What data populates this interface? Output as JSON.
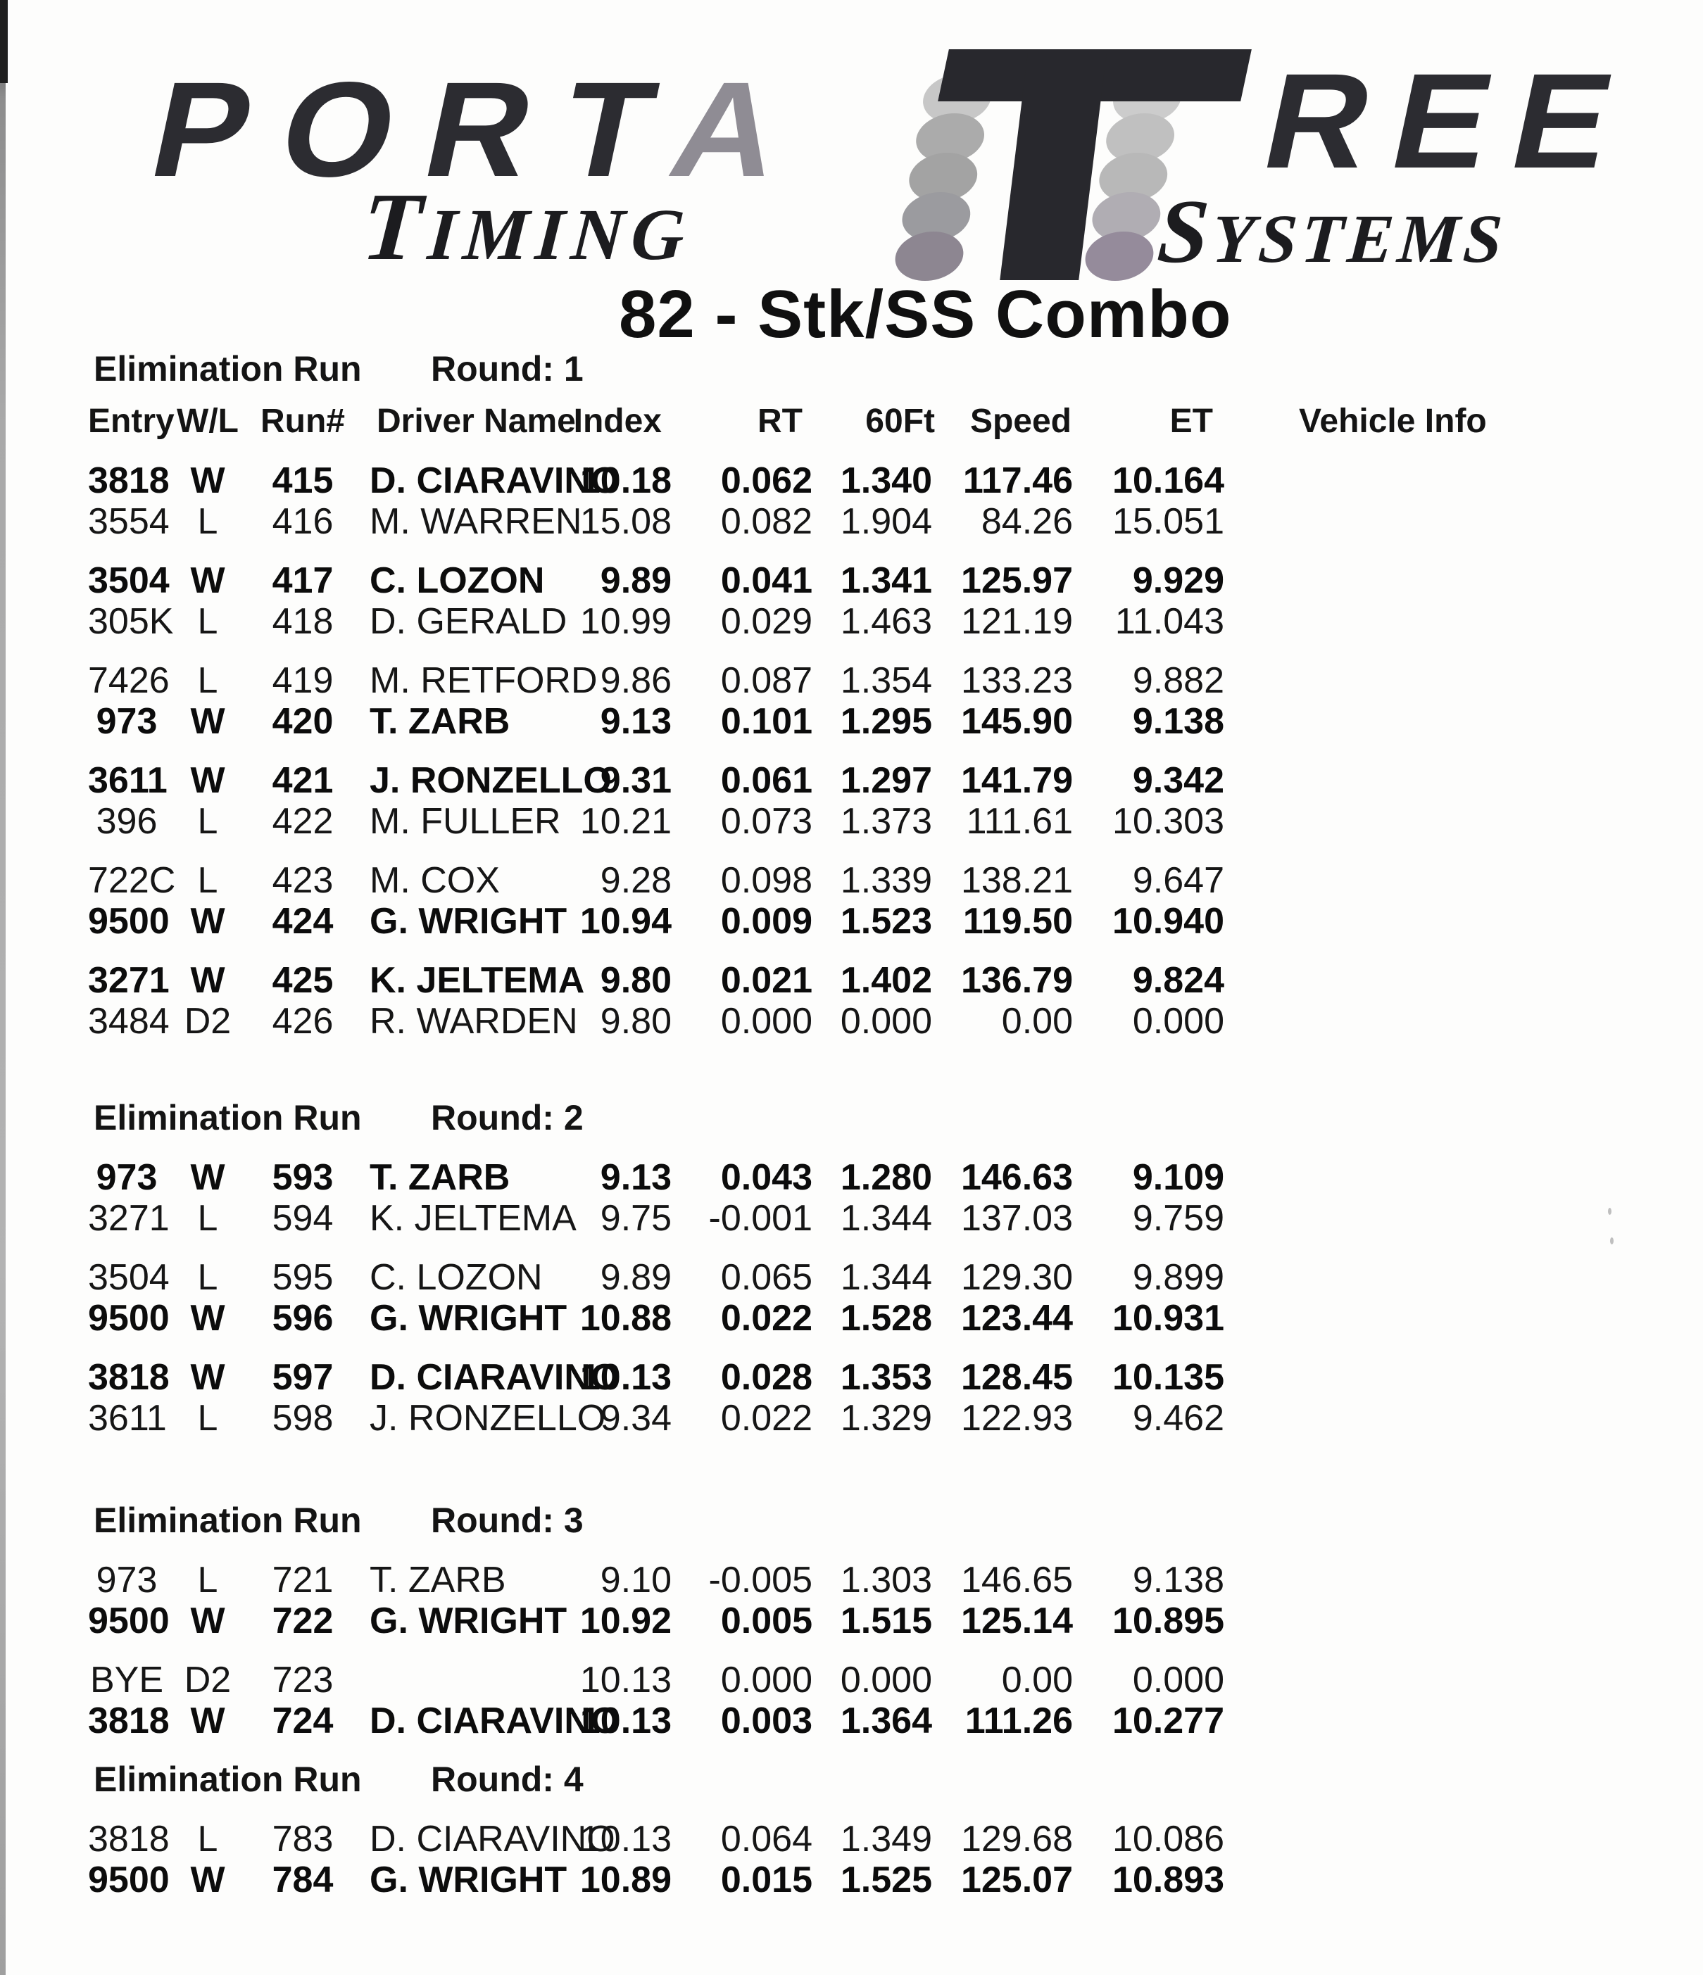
{
  "logo": {
    "brand_left_dark": "PORT",
    "brand_left_light": "A",
    "brand_right": "REE",
    "sub_left": "TIMING",
    "sub_right": "SYSTEMS",
    "ink_color": "#28282d",
    "light_colors_left": [
      "#c7c7c7",
      "#ababab",
      "#a3a3a3",
      "#9b9b9f",
      "#8d8691"
    ],
    "light_colors_right": [
      "#cccccc",
      "#c0c0c0",
      "#b8b8b8",
      "#b0adb3",
      "#958b9b"
    ]
  },
  "title": "82 - Stk/SS Combo",
  "table": {
    "section_label": "Elimination Run",
    "columns": [
      "Entry",
      "W/L",
      "Run#",
      "Driver Name",
      "Index",
      "RT",
      "60Ft",
      "Speed",
      "ET",
      "Vehicle Info"
    ],
    "rounds": [
      {
        "label": "Round: 1",
        "pairs": [
          [
            {
              "entry": "3818",
              "wl": "W",
              "run": "415",
              "driver": "D. CIARAVINO",
              "index": "10.18",
              "rt": "0.062",
              "ft60": "1.340",
              "speed": "117.46",
              "et": "10.164",
              "vehicle": "",
              "win": true
            },
            {
              "entry": "3554",
              "wl": "L",
              "run": "416",
              "driver": "M. WARREN",
              "index": "15.08",
              "rt": "0.082",
              "ft60": "1.904",
              "speed": "84.26",
              "et": "15.051",
              "vehicle": "",
              "win": false
            }
          ],
          [
            {
              "entry": "3504",
              "wl": "W",
              "run": "417",
              "driver": "C. LOZON",
              "index": "9.89",
              "rt": "0.041",
              "ft60": "1.341",
              "speed": "125.97",
              "et": "9.929",
              "vehicle": "",
              "win": true
            },
            {
              "entry": "305K",
              "wl": "L",
              "run": "418",
              "driver": "D. GERALD",
              "index": "10.99",
              "rt": "0.029",
              "ft60": "1.463",
              "speed": "121.19",
              "et": "11.043",
              "vehicle": "",
              "win": false
            }
          ],
          [
            {
              "entry": "7426",
              "wl": "L",
              "run": "419",
              "driver": "M. RETFORD",
              "index": "9.86",
              "rt": "0.087",
              "ft60": "1.354",
              "speed": "133.23",
              "et": "9.882",
              "vehicle": "",
              "win": false
            },
            {
              "entry": "973",
              "wl": "W",
              "run": "420",
              "driver": "T. ZARB",
              "index": "9.13",
              "rt": "0.101",
              "ft60": "1.295",
              "speed": "145.90",
              "et": "9.138",
              "vehicle": "",
              "win": true
            }
          ],
          [
            {
              "entry": "3611",
              "wl": "W",
              "run": "421",
              "driver": "J. RONZELLO",
              "index": "9.31",
              "rt": "0.061",
              "ft60": "1.297",
              "speed": "141.79",
              "et": "9.342",
              "vehicle": "",
              "win": true
            },
            {
              "entry": "396",
              "wl": "L",
              "run": "422",
              "driver": "M. FULLER",
              "index": "10.21",
              "rt": "0.073",
              "ft60": "1.373",
              "speed": "111.61",
              "et": "10.303",
              "vehicle": "",
              "win": false
            }
          ],
          [
            {
              "entry": "722C",
              "wl": "L",
              "run": "423",
              "driver": "M. COX",
              "index": "9.28",
              "rt": "0.098",
              "ft60": "1.339",
              "speed": "138.21",
              "et": "9.647",
              "vehicle": "",
              "win": false
            },
            {
              "entry": "9500",
              "wl": "W",
              "run": "424",
              "driver": "G. WRIGHT",
              "index": "10.94",
              "rt": "0.009",
              "ft60": "1.523",
              "speed": "119.50",
              "et": "10.940",
              "vehicle": "",
              "win": true
            }
          ],
          [
            {
              "entry": "3271",
              "wl": "W",
              "run": "425",
              "driver": "K. JELTEMA",
              "index": "9.80",
              "rt": "0.021",
              "ft60": "1.402",
              "speed": "136.79",
              "et": "9.824",
              "vehicle": "",
              "win": true
            },
            {
              "entry": "3484",
              "wl": "D2",
              "run": "426",
              "driver": "R. WARDEN",
              "index": "9.80",
              "rt": "0.000",
              "ft60": "0.000",
              "speed": "0.00",
              "et": "0.000",
              "vehicle": "",
              "win": false
            }
          ]
        ]
      },
      {
        "label": "Round: 2",
        "pairs": [
          [
            {
              "entry": "973",
              "wl": "W",
              "run": "593",
              "driver": "T. ZARB",
              "index": "9.13",
              "rt": "0.043",
              "ft60": "1.280",
              "speed": "146.63",
              "et": "9.109",
              "vehicle": "",
              "win": true
            },
            {
              "entry": "3271",
              "wl": "L",
              "run": "594",
              "driver": "K. JELTEMA",
              "index": "9.75",
              "rt": "-0.001",
              "ft60": "1.344",
              "speed": "137.03",
              "et": "9.759",
              "vehicle": "",
              "win": false
            }
          ],
          [
            {
              "entry": "3504",
              "wl": "L",
              "run": "595",
              "driver": "C. LOZON",
              "index": "9.89",
              "rt": "0.065",
              "ft60": "1.344",
              "speed": "129.30",
              "et": "9.899",
              "vehicle": "",
              "win": false
            },
            {
              "entry": "9500",
              "wl": "W",
              "run": "596",
              "driver": "G. WRIGHT",
              "index": "10.88",
              "rt": "0.022",
              "ft60": "1.528",
              "speed": "123.44",
              "et": "10.931",
              "vehicle": "",
              "win": true
            }
          ],
          [
            {
              "entry": "3818",
              "wl": "W",
              "run": "597",
              "driver": "D. CIARAVINO",
              "index": "10.13",
              "rt": "0.028",
              "ft60": "1.353",
              "speed": "128.45",
              "et": "10.135",
              "vehicle": "",
              "win": true
            },
            {
              "entry": "3611",
              "wl": "L",
              "run": "598",
              "driver": "J. RONZELLO",
              "index": "9.34",
              "rt": "0.022",
              "ft60": "1.329",
              "speed": "122.93",
              "et": "9.462",
              "vehicle": "",
              "win": false
            }
          ]
        ]
      },
      {
        "label": "Round: 3",
        "pairs": [
          [
            {
              "entry": "973",
              "wl": "L",
              "run": "721",
              "driver": "T. ZARB",
              "index": "9.10",
              "rt": "-0.005",
              "ft60": "1.303",
              "speed": "146.65",
              "et": "9.138",
              "vehicle": "",
              "win": false
            },
            {
              "entry": "9500",
              "wl": "W",
              "run": "722",
              "driver": "G. WRIGHT",
              "index": "10.92",
              "rt": "0.005",
              "ft60": "1.515",
              "speed": "125.14",
              "et": "10.895",
              "vehicle": "",
              "win": true
            }
          ],
          [
            {
              "entry": "BYE",
              "wl": "D2",
              "run": "723",
              "driver": "",
              "index": "10.13",
              "rt": "0.000",
              "ft60": "0.000",
              "speed": "0.00",
              "et": "0.000",
              "vehicle": "",
              "win": false
            },
            {
              "entry": "3818",
              "wl": "W",
              "run": "724",
              "driver": "D. CIARAVINO",
              "index": "10.13",
              "rt": "0.003",
              "ft60": "1.364",
              "speed": "111.26",
              "et": "10.277",
              "vehicle": "",
              "win": true
            }
          ]
        ]
      },
      {
        "label": "Round: 4",
        "pairs": [
          [
            {
              "entry": "3818",
              "wl": "L",
              "run": "783",
              "driver": "D. CIARAVINO",
              "index": "10.13",
              "rt": "0.064",
              "ft60": "1.349",
              "speed": "129.68",
              "et": "10.086",
              "vehicle": "",
              "win": false
            },
            {
              "entry": "9500",
              "wl": "W",
              "run": "784",
              "driver": "G. WRIGHT",
              "index": "10.89",
              "rt": "0.015",
              "ft60": "1.525",
              "speed": "125.07",
              "et": "10.893",
              "vehicle": "",
              "win": true
            }
          ]
        ]
      }
    ]
  }
}
